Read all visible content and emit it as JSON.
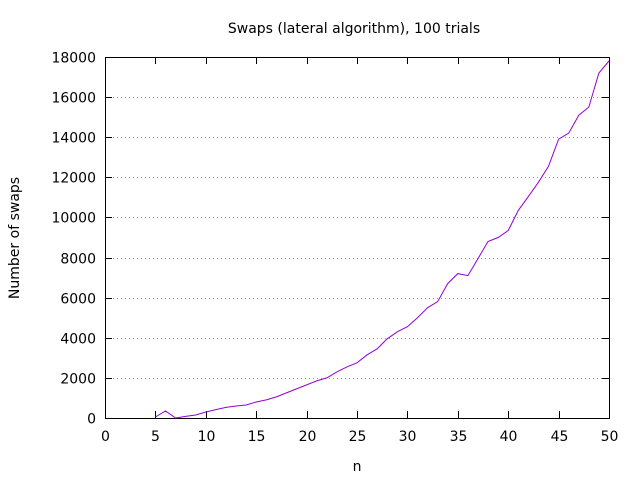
{
  "chart_data": {
    "type": "line",
    "title": "Swaps (lateral algorithm), 100 trials",
    "xlabel": "n",
    "ylabel": "Number of swaps",
    "xlim": [
      0,
      50
    ],
    "ylim": [
      0,
      18000
    ],
    "xticks": [
      "0",
      "5",
      "10",
      "15",
      "20",
      "25",
      "30",
      "35",
      "40",
      "45",
      "50"
    ],
    "yticks": [
      "0",
      "2000",
      "4000",
      "6000",
      "8000",
      "10000",
      "12000",
      "14000",
      "16000",
      "18000"
    ],
    "grid": "horizontal dotted",
    "legend": "none",
    "series": [
      {
        "color": "#9400d3",
        "x": [
          5,
          6,
          7,
          8,
          9,
          10,
          11,
          12,
          13,
          14,
          15,
          16,
          17,
          18,
          19,
          20,
          21,
          22,
          23,
          24,
          25,
          26,
          27,
          28,
          29,
          30,
          31,
          32,
          33,
          34,
          35,
          36,
          37,
          38,
          39,
          40,
          41,
          42,
          43,
          44,
          45,
          46,
          47,
          48,
          49,
          50
        ],
        "y": [
          50,
          350,
          0,
          80,
          150,
          300,
          420,
          530,
          600,
          650,
          800,
          900,
          1050,
          1250,
          1450,
          1650,
          1850,
          2000,
          2300,
          2550,
          2750,
          3150,
          3450,
          3950,
          4300,
          4550,
          5000,
          5500,
          5800,
          6700,
          7200,
          7100,
          7950,
          8800,
          9000,
          9350,
          10350,
          11050,
          11750,
          12550,
          13900,
          14200,
          15100,
          15500,
          17200,
          17800
        ]
      }
    ]
  }
}
